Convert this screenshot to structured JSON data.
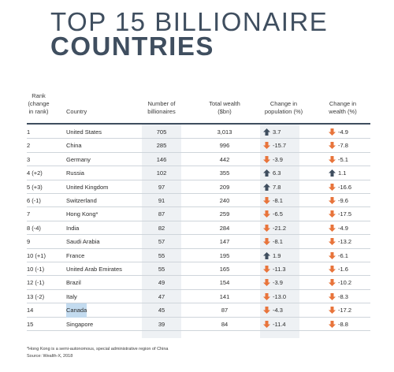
{
  "title": {
    "line1": "TOP 15 BILLIONAIRE",
    "line2": "COUNTRIES"
  },
  "headers": {
    "rank": "Rank\n(change\nin rank)",
    "country": "Country",
    "billionaires": "Number of\nbillionaires",
    "wealth": "Total wealth\n($bn)",
    "pop_change": "Change in\npopulation (%)",
    "wealth_change": "Change in\nwealth (%)"
  },
  "colors": {
    "up": "#3f4e5f",
    "down": "#e8743b",
    "title": "#3f4e5f",
    "highlight": "#c3dbef"
  },
  "rows": [
    {
      "rank": "1",
      "country": "United States",
      "billionaires": "705",
      "wealth": "3,013",
      "pop": "3.7",
      "pop_dir": "up",
      "wchg": "-4.9",
      "w_dir": "down"
    },
    {
      "rank": "2",
      "country": "China",
      "billionaires": "285",
      "wealth": "996",
      "pop": "-15.7",
      "pop_dir": "down",
      "wchg": "-7.8",
      "w_dir": "down"
    },
    {
      "rank": "3",
      "country": "Germany",
      "billionaires": "146",
      "wealth": "442",
      "pop": "-3.9",
      "pop_dir": "down",
      "wchg": "-5.1",
      "w_dir": "down"
    },
    {
      "rank": "4 (+2)",
      "country": "Russia",
      "billionaires": "102",
      "wealth": "355",
      "pop": "6.3",
      "pop_dir": "up",
      "wchg": "1.1",
      "w_dir": "up"
    },
    {
      "rank": "5 (+3)",
      "country": "United Kingdom",
      "billionaires": "97",
      "wealth": "209",
      "pop": "7.8",
      "pop_dir": "up",
      "wchg": "-16.6",
      "w_dir": "down"
    },
    {
      "rank": "6 (-1)",
      "country": "Switzerland",
      "billionaires": "91",
      "wealth": "240",
      "pop": "-8.1",
      "pop_dir": "down",
      "wchg": "-9.6",
      "w_dir": "down"
    },
    {
      "rank": "7",
      "country": "Hong Kong*",
      "billionaires": "87",
      "wealth": "259",
      "pop": "-6.5",
      "pop_dir": "down",
      "wchg": "-17.5",
      "w_dir": "down"
    },
    {
      "rank": "8 (-4)",
      "country": "India",
      "billionaires": "82",
      "wealth": "284",
      "pop": "-21.2",
      "pop_dir": "down",
      "wchg": "-4.9",
      "w_dir": "down"
    },
    {
      "rank": "9",
      "country": "Saudi Arabia",
      "billionaires": "57",
      "wealth": "147",
      "pop": "-8.1",
      "pop_dir": "down",
      "wchg": "-13.2",
      "w_dir": "down"
    },
    {
      "rank": "10 (+1)",
      "country": "France",
      "billionaires": "55",
      "wealth": "195",
      "pop": "1.9",
      "pop_dir": "up",
      "wchg": "-6.1",
      "w_dir": "down"
    },
    {
      "rank": "10 (-1)",
      "country": "United Arab Emirates",
      "billionaires": "55",
      "wealth": "165",
      "pop": "-11.3",
      "pop_dir": "down",
      "wchg": "-1.6",
      "w_dir": "down"
    },
    {
      "rank": "12 (-1)",
      "country": "Brazil",
      "billionaires": "49",
      "wealth": "154",
      "pop": "-3.9",
      "pop_dir": "down",
      "wchg": "-10.2",
      "w_dir": "down"
    },
    {
      "rank": "13 (-2)",
      "country": "Italy",
      "billionaires": "47",
      "wealth": "141",
      "pop": "-13.0",
      "pop_dir": "down",
      "wchg": "-8.3",
      "w_dir": "down"
    },
    {
      "rank": "14",
      "country": "Canada",
      "billionaires": "45",
      "wealth": "87",
      "pop": "-4.3",
      "pop_dir": "down",
      "wchg": "-17.2",
      "w_dir": "down",
      "highlight": true
    },
    {
      "rank": "15",
      "country": "Singapore",
      "billionaires": "39",
      "wealth": "84",
      "pop": "-11.4",
      "pop_dir": "down",
      "wchg": "-8.8",
      "w_dir": "down"
    }
  ],
  "footnote": "*Hong Kong is a semi-autonomous, special administrative region of China",
  "source": "Source: Wealth-X, 2018"
}
